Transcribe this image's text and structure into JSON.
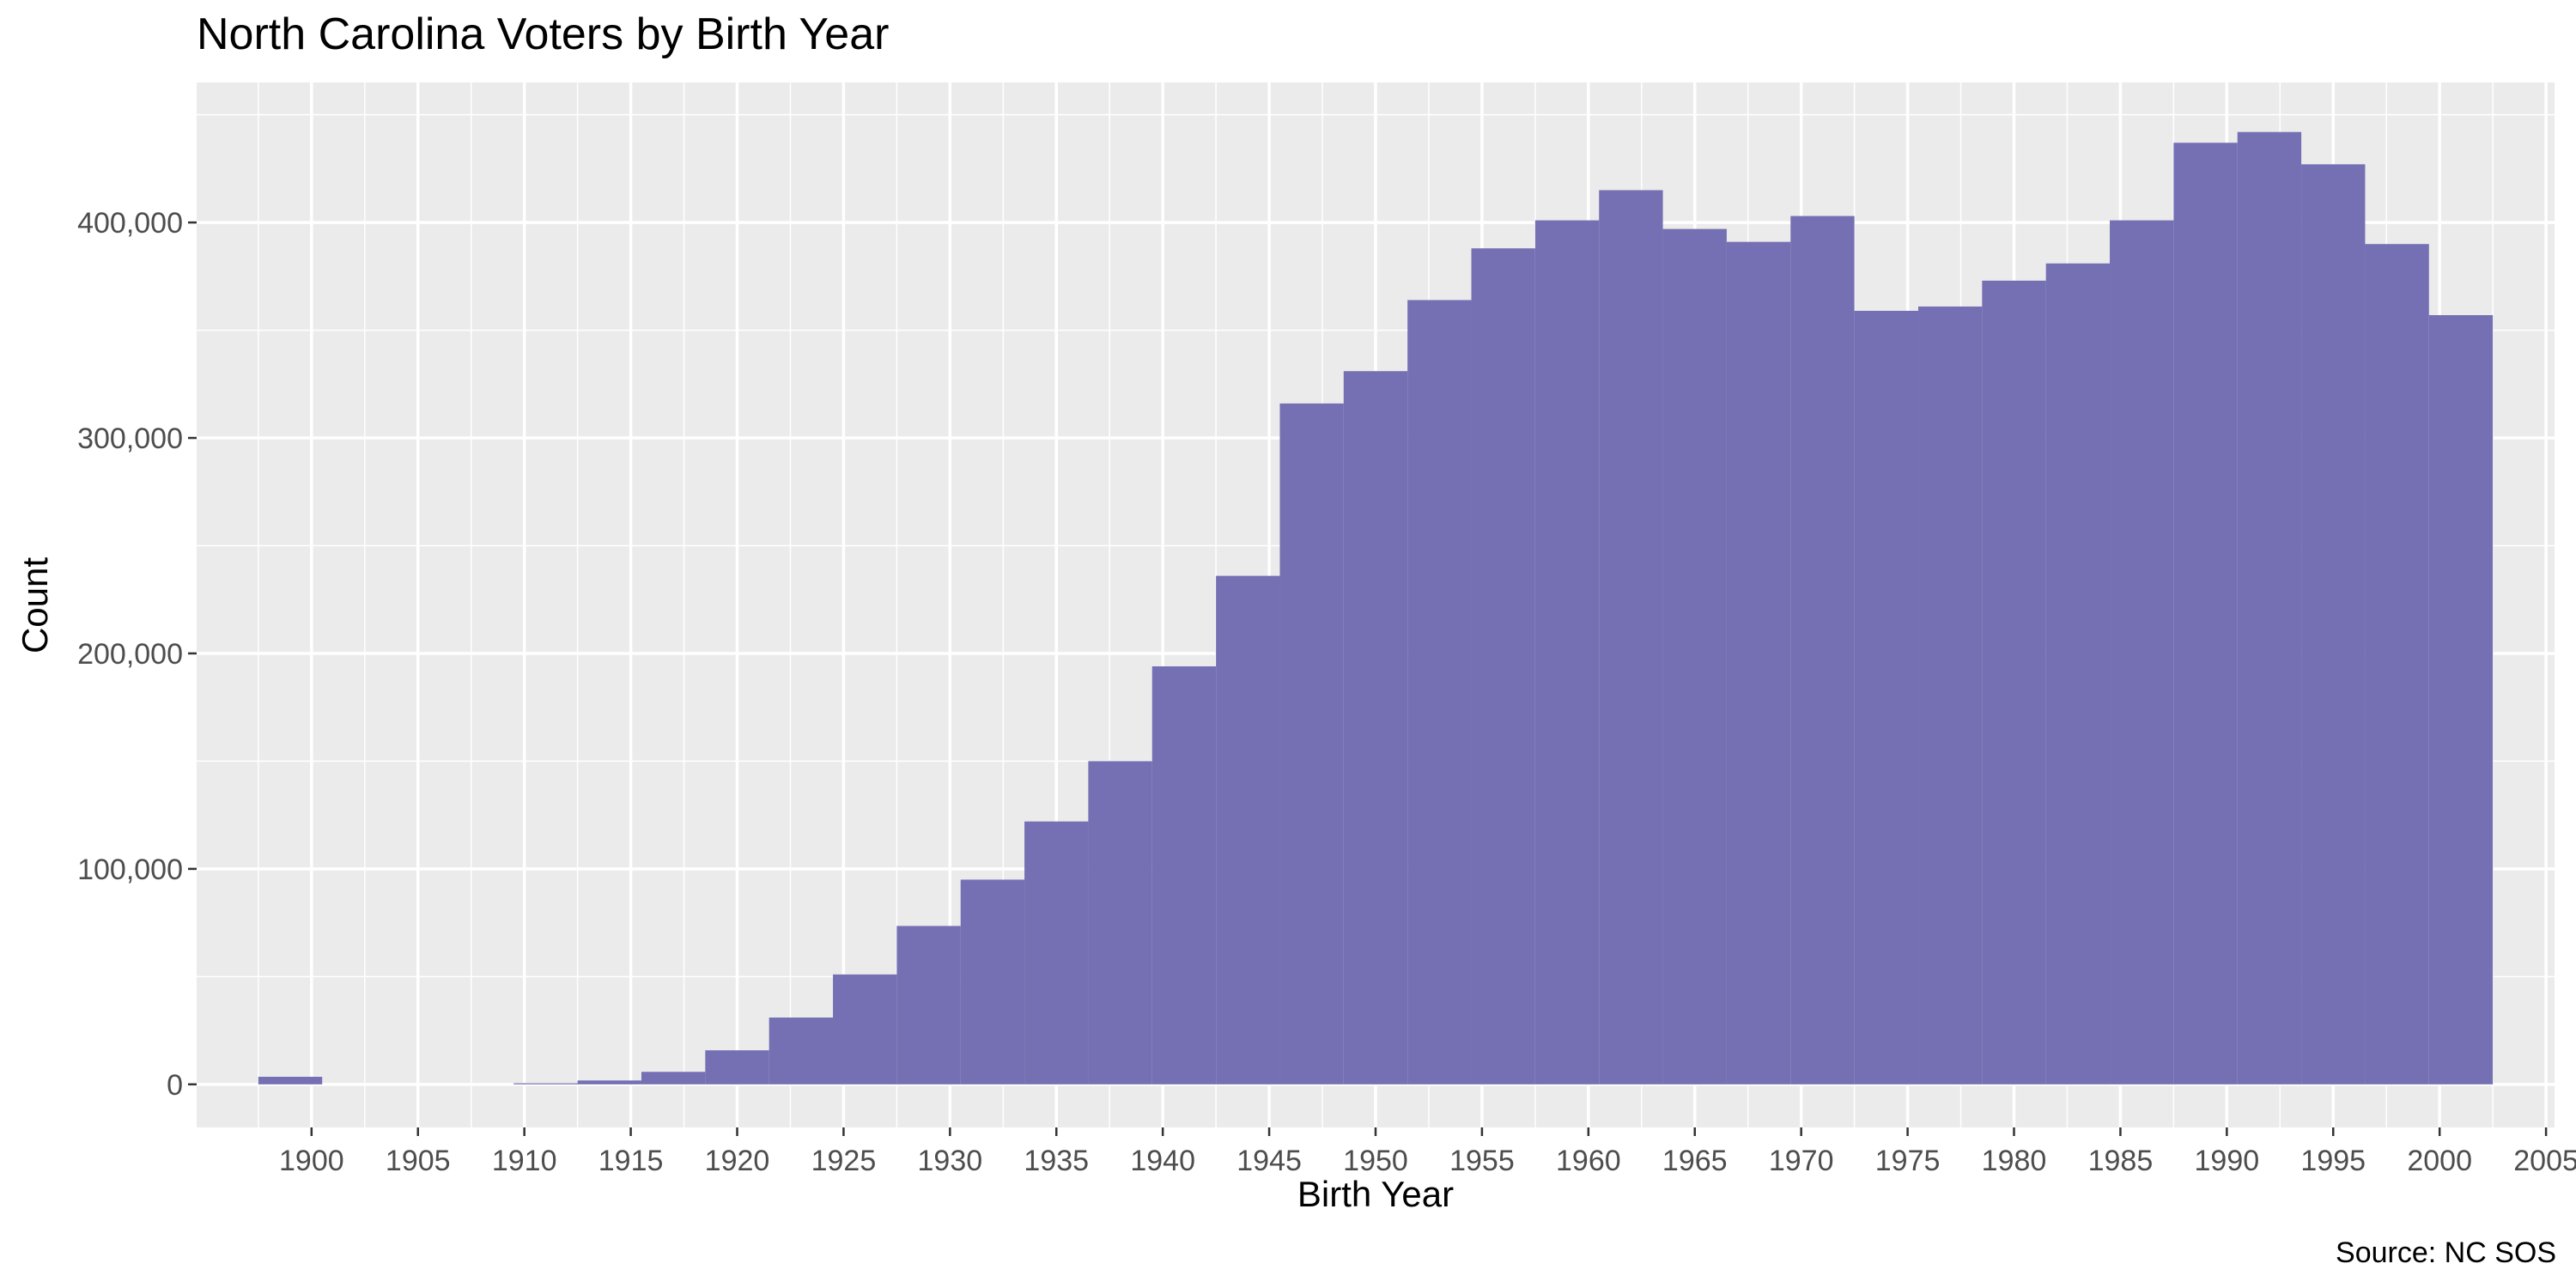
{
  "chart_data": {
    "type": "bar",
    "title": "North Carolina Voters by Birth Year",
    "xlabel": "Birth Year",
    "ylabel": "Count",
    "caption": "Source: NC SOS",
    "xlim": [
      1894.6,
      2005.4
    ],
    "ylim": [
      -20000,
      465000
    ],
    "grid": true,
    "bar_color": "#7570b3",
    "panel_color": "#ebebeb",
    "bin_width": 3,
    "x_ticks": [
      1900,
      1905,
      1910,
      1915,
      1920,
      1925,
      1930,
      1935,
      1940,
      1945,
      1950,
      1955,
      1960,
      1965,
      1970,
      1975,
      1980,
      1985,
      1990,
      1995,
      2000,
      2005
    ],
    "x_tick_labels": [
      "1900",
      "1905",
      "1910",
      "1915",
      "1920",
      "1925",
      "1930",
      "1935",
      "1940",
      "1945",
      "1950",
      "1955",
      "1960",
      "1965",
      "1970",
      "1975",
      "1980",
      "1985",
      "1990",
      "1995",
      "2000",
      "2005"
    ],
    "y_ticks": [
      0,
      100000,
      200000,
      300000,
      400000
    ],
    "y_tick_labels": [
      "0",
      "100,000",
      "200,000",
      "300,000",
      "400,000"
    ],
    "bins": [
      {
        "x0": 1897.5,
        "x1": 1900.5,
        "count": 3500
      },
      {
        "x0": 1900.5,
        "x1": 1903.5,
        "count": 0
      },
      {
        "x0": 1903.5,
        "x1": 1906.5,
        "count": 0
      },
      {
        "x0": 1906.5,
        "x1": 1909.5,
        "count": 0
      },
      {
        "x0": 1909.5,
        "x1": 1912.5,
        "count": 500
      },
      {
        "x0": 1912.5,
        "x1": 1915.5,
        "count": 1800
      },
      {
        "x0": 1915.5,
        "x1": 1918.5,
        "count": 5800
      },
      {
        "x0": 1918.5,
        "x1": 1921.5,
        "count": 15800
      },
      {
        "x0": 1921.5,
        "x1": 1924.5,
        "count": 31000
      },
      {
        "x0": 1924.5,
        "x1": 1927.5,
        "count": 51000
      },
      {
        "x0": 1927.5,
        "x1": 1930.5,
        "count": 73500
      },
      {
        "x0": 1930.5,
        "x1": 1933.5,
        "count": 95000
      },
      {
        "x0": 1933.5,
        "x1": 1936.5,
        "count": 122000
      },
      {
        "x0": 1936.5,
        "x1": 1939.5,
        "count": 150000
      },
      {
        "x0": 1939.5,
        "x1": 1942.5,
        "count": 194000
      },
      {
        "x0": 1942.5,
        "x1": 1945.5,
        "count": 236000
      },
      {
        "x0": 1945.5,
        "x1": 1948.5,
        "count": 316000
      },
      {
        "x0": 1948.5,
        "x1": 1951.5,
        "count": 331000
      },
      {
        "x0": 1951.5,
        "x1": 1954.5,
        "count": 364000
      },
      {
        "x0": 1954.5,
        "x1": 1957.5,
        "count": 388000
      },
      {
        "x0": 1957.5,
        "x1": 1960.5,
        "count": 401000
      },
      {
        "x0": 1960.5,
        "x1": 1963.5,
        "count": 415000
      },
      {
        "x0": 1963.5,
        "x1": 1966.5,
        "count": 397000
      },
      {
        "x0": 1966.5,
        "x1": 1969.5,
        "count": 391000
      },
      {
        "x0": 1969.5,
        "x1": 1972.5,
        "count": 403000
      },
      {
        "x0": 1972.5,
        "x1": 1975.5,
        "count": 359000
      },
      {
        "x0": 1975.5,
        "x1": 1978.5,
        "count": 361000
      },
      {
        "x0": 1978.5,
        "x1": 1981.5,
        "count": 373000
      },
      {
        "x0": 1981.5,
        "x1": 1984.5,
        "count": 381000
      },
      {
        "x0": 1984.5,
        "x1": 1987.5,
        "count": 401000
      },
      {
        "x0": 1987.5,
        "x1": 1990.5,
        "count": 437000
      },
      {
        "x0": 1990.5,
        "x1": 1993.5,
        "count": 442000
      },
      {
        "x0": 1993.5,
        "x1": 1996.5,
        "count": 427000
      },
      {
        "x0": 1996.5,
        "x1": 1999.5,
        "count": 390000
      },
      {
        "x0": 1999.5,
        "x1": 2002.5,
        "count": 357000
      }
    ]
  }
}
